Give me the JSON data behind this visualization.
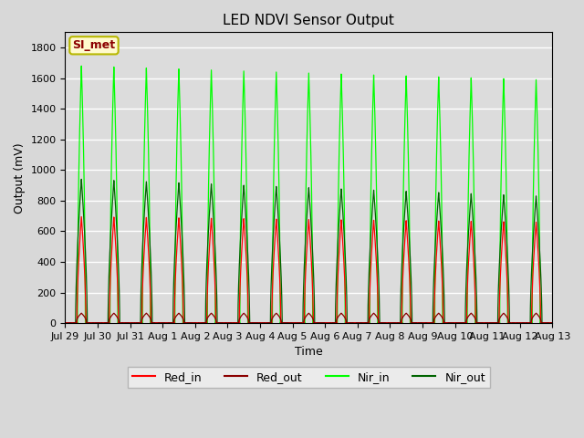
{
  "title": "LED NDVI Sensor Output",
  "xlabel": "Time",
  "ylabel": "Output (mV)",
  "ylim": [
    0,
    1900
  ],
  "yticks": [
    0,
    200,
    400,
    600,
    800,
    1000,
    1200,
    1400,
    1600,
    1800
  ],
  "xtick_labels": [
    "Jul 29",
    "Jul 30",
    "Jul 31",
    "Aug 1",
    "Aug 2",
    "Aug 3",
    "Aug 4",
    "Aug 5",
    "Aug 6",
    "Aug 7",
    "Aug 8",
    "Aug 9",
    "Aug 10",
    "Aug 11",
    "Aug 12",
    "Aug 13"
  ],
  "n_days": 15,
  "red_in_peak_early": 695,
  "red_in_peak_late": 660,
  "red_out_base": 65,
  "red_out_peak": 55,
  "nir_in_peak_early": 1680,
  "nir_in_peak_late": 1590,
  "nir_out_peak_early": 940,
  "nir_out_peak_late": 830,
  "color_red_in": "#FF0000",
  "color_red_out": "#8B0000",
  "color_nir_in": "#00FF00",
  "color_nir_out": "#006400",
  "bg_color": "#DCDCDC",
  "fig_bg_color": "#D8D8D8",
  "label_box_color": "#FFFACD",
  "label_box_edge_color": "#B8B800",
  "label_box_text": "SI_met",
  "label_box_text_color": "#8B0000",
  "legend_labels": [
    "Red_in",
    "Red_out",
    "Nir_in",
    "Nir_out"
  ],
  "title_fontsize": 11,
  "axis_label_fontsize": 9,
  "tick_fontsize": 8
}
